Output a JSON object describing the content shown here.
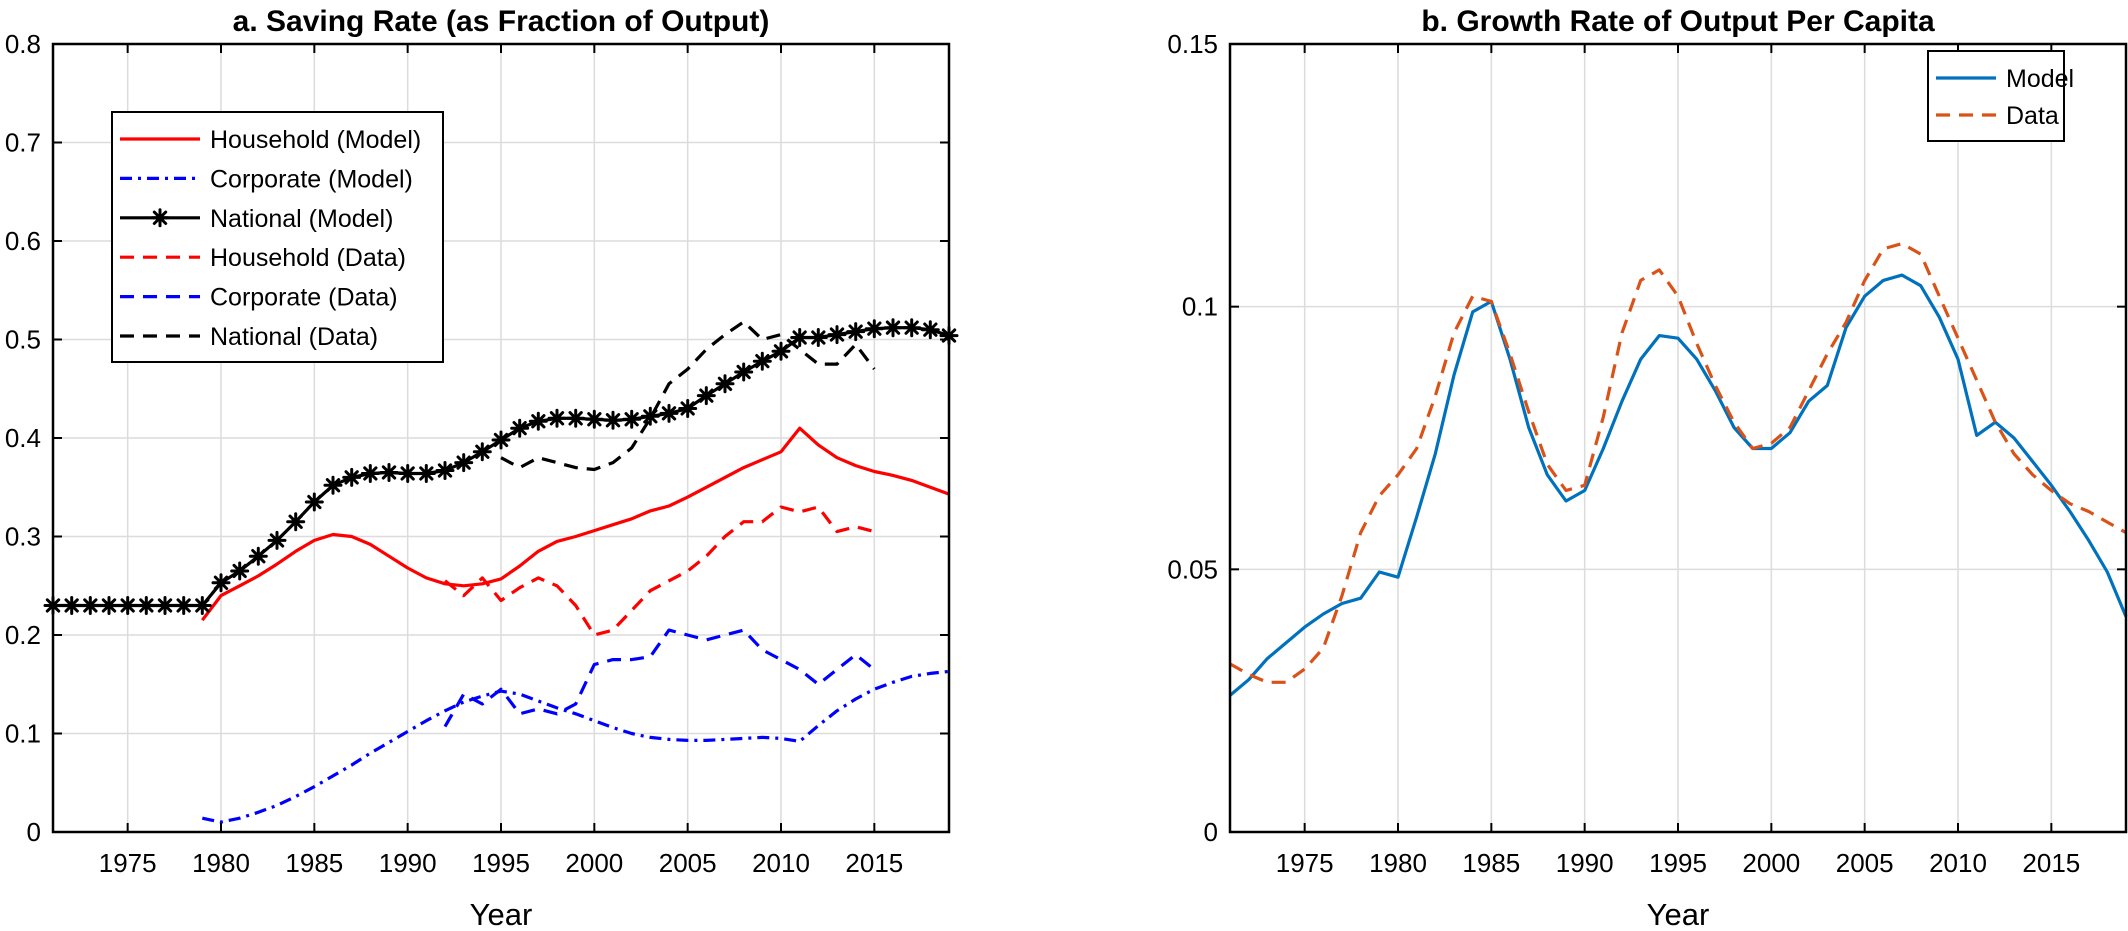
{
  "chart_data": [
    {
      "type": "line",
      "title": "a. Saving Rate (as Fraction of Output)",
      "xlabel": "Year",
      "ylabel": "",
      "xlim": [
        1971,
        2019
      ],
      "ylim": [
        0,
        0.8
      ],
      "xticks": [
        1975,
        1980,
        1985,
        1990,
        1995,
        2000,
        2005,
        2010,
        2015
      ],
      "yticks": [
        0,
        0.1,
        0.2,
        0.3,
        0.4,
        0.5,
        0.6,
        0.7,
        0.8
      ],
      "grid": true,
      "legend_position": "top-left",
      "series": [
        {
          "name": "Household (Model)",
          "color": "#ff0000",
          "style": "solid",
          "marker": "",
          "x": [
            1979,
            1980,
            1981,
            1982,
            1983,
            1984,
            1985,
            1986,
            1987,
            1988,
            1989,
            1990,
            1991,
            1992,
            1993,
            1994,
            1995,
            1996,
            1997,
            1998,
            1999,
            2000,
            2001,
            2002,
            2003,
            2004,
            2005,
            2006,
            2007,
            2008,
            2009,
            2010,
            2011,
            2012,
            2013,
            2014,
            2015,
            2016,
            2017,
            2018,
            2019
          ],
          "y": [
            0.215,
            0.24,
            0.25,
            0.26,
            0.272,
            0.285,
            0.296,
            0.302,
            0.3,
            0.292,
            0.28,
            0.268,
            0.258,
            0.252,
            0.25,
            0.252,
            0.257,
            0.27,
            0.285,
            0.295,
            0.3,
            0.306,
            0.312,
            0.318,
            0.326,
            0.331,
            0.34,
            0.35,
            0.36,
            0.37,
            0.378,
            0.386,
            0.41,
            0.393,
            0.38,
            0.372,
            0.366,
            0.362,
            0.357,
            0.35,
            0.343
          ]
        },
        {
          "name": "Corporate (Model)",
          "color": "#0000ff",
          "style": "dashdot",
          "marker": "",
          "x": [
            1979,
            1980,
            1981,
            1982,
            1983,
            1984,
            1985,
            1986,
            1987,
            1988,
            1989,
            1990,
            1991,
            1992,
            1993,
            1994,
            1995,
            1996,
            1997,
            1998,
            1999,
            2000,
            2001,
            2002,
            2003,
            2004,
            2005,
            2006,
            2007,
            2008,
            2009,
            2010,
            2011,
            2012,
            2013,
            2014,
            2015,
            2016,
            2017,
            2018,
            2019
          ],
          "y": [
            0.014,
            0.01,
            0.014,
            0.02,
            0.027,
            0.036,
            0.046,
            0.057,
            0.068,
            0.08,
            0.091,
            0.102,
            0.113,
            0.123,
            0.132,
            0.138,
            0.143,
            0.14,
            0.133,
            0.126,
            0.12,
            0.113,
            0.106,
            0.1,
            0.096,
            0.094,
            0.093,
            0.093,
            0.094,
            0.095,
            0.096,
            0.095,
            0.092,
            0.108,
            0.123,
            0.135,
            0.145,
            0.152,
            0.158,
            0.161,
            0.163
          ]
        },
        {
          "name": "National (Model)",
          "color": "#000000",
          "style": "solid",
          "marker": "asterisk",
          "x": [
            1971,
            1972,
            1973,
            1974,
            1975,
            1976,
            1977,
            1978,
            1979,
            1980,
            1981,
            1982,
            1983,
            1984,
            1985,
            1986,
            1987,
            1988,
            1989,
            1990,
            1991,
            1992,
            1993,
            1994,
            1995,
            1996,
            1997,
            1998,
            1999,
            2000,
            2001,
            2002,
            2003,
            2004,
            2005,
            2006,
            2007,
            2008,
            2009,
            2010,
            2011,
            2012,
            2013,
            2014,
            2015,
            2016,
            2017,
            2018,
            2019
          ],
          "y": [
            0.23,
            0.23,
            0.23,
            0.23,
            0.23,
            0.23,
            0.23,
            0.23,
            0.23,
            0.253,
            0.265,
            0.28,
            0.296,
            0.315,
            0.335,
            0.352,
            0.36,
            0.364,
            0.365,
            0.364,
            0.364,
            0.367,
            0.375,
            0.386,
            0.398,
            0.41,
            0.417,
            0.42,
            0.42,
            0.419,
            0.418,
            0.419,
            0.422,
            0.425,
            0.43,
            0.443,
            0.455,
            0.467,
            0.478,
            0.488,
            0.502,
            0.502,
            0.505,
            0.508,
            0.511,
            0.512,
            0.512,
            0.51,
            0.504
          ]
        },
        {
          "name": "Household (Data)",
          "color": "#ff0000",
          "style": "dashed",
          "marker": "",
          "x": [
            1992,
            1993,
            1994,
            1995,
            1996,
            1997,
            1998,
            1999,
            2000,
            2001,
            2002,
            2003,
            2004,
            2005,
            2006,
            2007,
            2008,
            2009,
            2010,
            2011,
            2012,
            2013,
            2014,
            2015
          ],
          "y": [
            0.255,
            0.24,
            0.258,
            0.235,
            0.248,
            0.258,
            0.25,
            0.23,
            0.2,
            0.205,
            0.225,
            0.245,
            0.255,
            0.265,
            0.28,
            0.3,
            0.315,
            0.315,
            0.33,
            0.325,
            0.33,
            0.305,
            0.31,
            0.305
          ]
        },
        {
          "name": "Corporate (Data)",
          "color": "#0000ff",
          "style": "dashed",
          "marker": "",
          "x": [
            1992,
            1993,
            1994,
            1995,
            1996,
            1997,
            1998,
            1999,
            2000,
            2001,
            2002,
            2003,
            2004,
            2005,
            2006,
            2007,
            2008,
            2009,
            2010,
            2011,
            2012,
            2013,
            2014,
            2015
          ],
          "y": [
            0.107,
            0.14,
            0.13,
            0.145,
            0.12,
            0.125,
            0.12,
            0.13,
            0.17,
            0.175,
            0.175,
            0.178,
            0.205,
            0.2,
            0.195,
            0.2,
            0.205,
            0.185,
            0.175,
            0.165,
            0.15,
            0.165,
            0.18,
            0.165
          ]
        },
        {
          "name": "National (Data)",
          "color": "#000000",
          "style": "dashed",
          "marker": "",
          "x": [
            1995,
            1996,
            1997,
            1998,
            1999,
            2000,
            2001,
            2002,
            2003,
            2004,
            2005,
            2006,
            2007,
            2008,
            2009,
            2010,
            2011,
            2012,
            2013,
            2014,
            2015
          ],
          "y": [
            0.38,
            0.37,
            0.38,
            0.375,
            0.37,
            0.368,
            0.375,
            0.39,
            0.42,
            0.455,
            0.47,
            0.49,
            0.505,
            0.518,
            0.5,
            0.505,
            0.49,
            0.475,
            0.475,
            0.495,
            0.47
          ]
        }
      ]
    },
    {
      "type": "line",
      "title": "b. Growth Rate of Output Per Capita",
      "xlabel": "Year",
      "ylabel": "",
      "xlim": [
        1971,
        2019
      ],
      "ylim": [
        0,
        0.15
      ],
      "xticks": [
        1975,
        1980,
        1985,
        1990,
        1995,
        2000,
        2005,
        2010,
        2015
      ],
      "yticks": [
        0,
        0.05,
        0.1,
        0.15
      ],
      "ytick_labels": [
        "0",
        "0.05",
        "0.1",
        "0.15"
      ],
      "grid": true,
      "legend_position": "top-right",
      "series": [
        {
          "name": "Model",
          "color": "#0072bd",
          "style": "solid",
          "marker": "",
          "x": [
            1971,
            1972,
            1973,
            1974,
            1975,
            1976,
            1977,
            1978,
            1979,
            1980,
            1981,
            1982,
            1983,
            1984,
            1985,
            1986,
            1987,
            1988,
            1989,
            1990,
            1991,
            1992,
            1993,
            1994,
            1995,
            1996,
            1997,
            1998,
            1999,
            2000,
            2001,
            2002,
            2003,
            2004,
            2005,
            2006,
            2007,
            2008,
            2009,
            2010,
            2011,
            2012,
            2013,
            2014,
            2015,
            2016,
            2017,
            2018,
            2019
          ],
          "y": [
            0.026,
            0.029,
            0.033,
            0.036,
            0.039,
            0.0415,
            0.0435,
            0.0445,
            0.0495,
            0.0485,
            0.06,
            0.072,
            0.087,
            0.099,
            0.101,
            0.09,
            0.077,
            0.068,
            0.063,
            0.065,
            0.073,
            0.082,
            0.09,
            0.0945,
            0.094,
            0.09,
            0.084,
            0.077,
            0.073,
            0.073,
            0.076,
            0.082,
            0.085,
            0.096,
            0.102,
            0.105,
            0.106,
            0.104,
            0.098,
            0.09,
            0.0755,
            0.078,
            0.075,
            0.0705,
            0.066,
            0.061,
            0.0555,
            0.0495,
            0.041
          ]
        },
        {
          "name": "Data",
          "color": "#d95319",
          "style": "dashed",
          "marker": "",
          "x": [
            1971,
            1972,
            1973,
            1974,
            1975,
            1976,
            1977,
            1978,
            1979,
            1980,
            1981,
            1982,
            1983,
            1984,
            1985,
            1986,
            1987,
            1988,
            1989,
            1990,
            1991,
            1992,
            1993,
            1994,
            1995,
            1996,
            1997,
            1998,
            1999,
            2000,
            2001,
            2002,
            2003,
            2004,
            2005,
            2006,
            2007,
            2008,
            2009,
            2010,
            2011,
            2012,
            2013,
            2014,
            2015,
            2016,
            2017,
            2018,
            2019
          ],
          "y": [
            0.032,
            0.03,
            0.0285,
            0.0285,
            0.031,
            0.035,
            0.045,
            0.057,
            0.064,
            0.068,
            0.073,
            0.083,
            0.095,
            0.102,
            0.101,
            0.091,
            0.08,
            0.07,
            0.065,
            0.066,
            0.079,
            0.095,
            0.105,
            0.107,
            0.102,
            0.093,
            0.085,
            0.078,
            0.073,
            0.074,
            0.077,
            0.084,
            0.091,
            0.097,
            0.105,
            0.111,
            0.112,
            0.11,
            0.102,
            0.094,
            0.086,
            0.078,
            0.072,
            0.068,
            0.065,
            0.0625,
            0.061,
            0.059,
            0.057
          ]
        }
      ]
    }
  ]
}
